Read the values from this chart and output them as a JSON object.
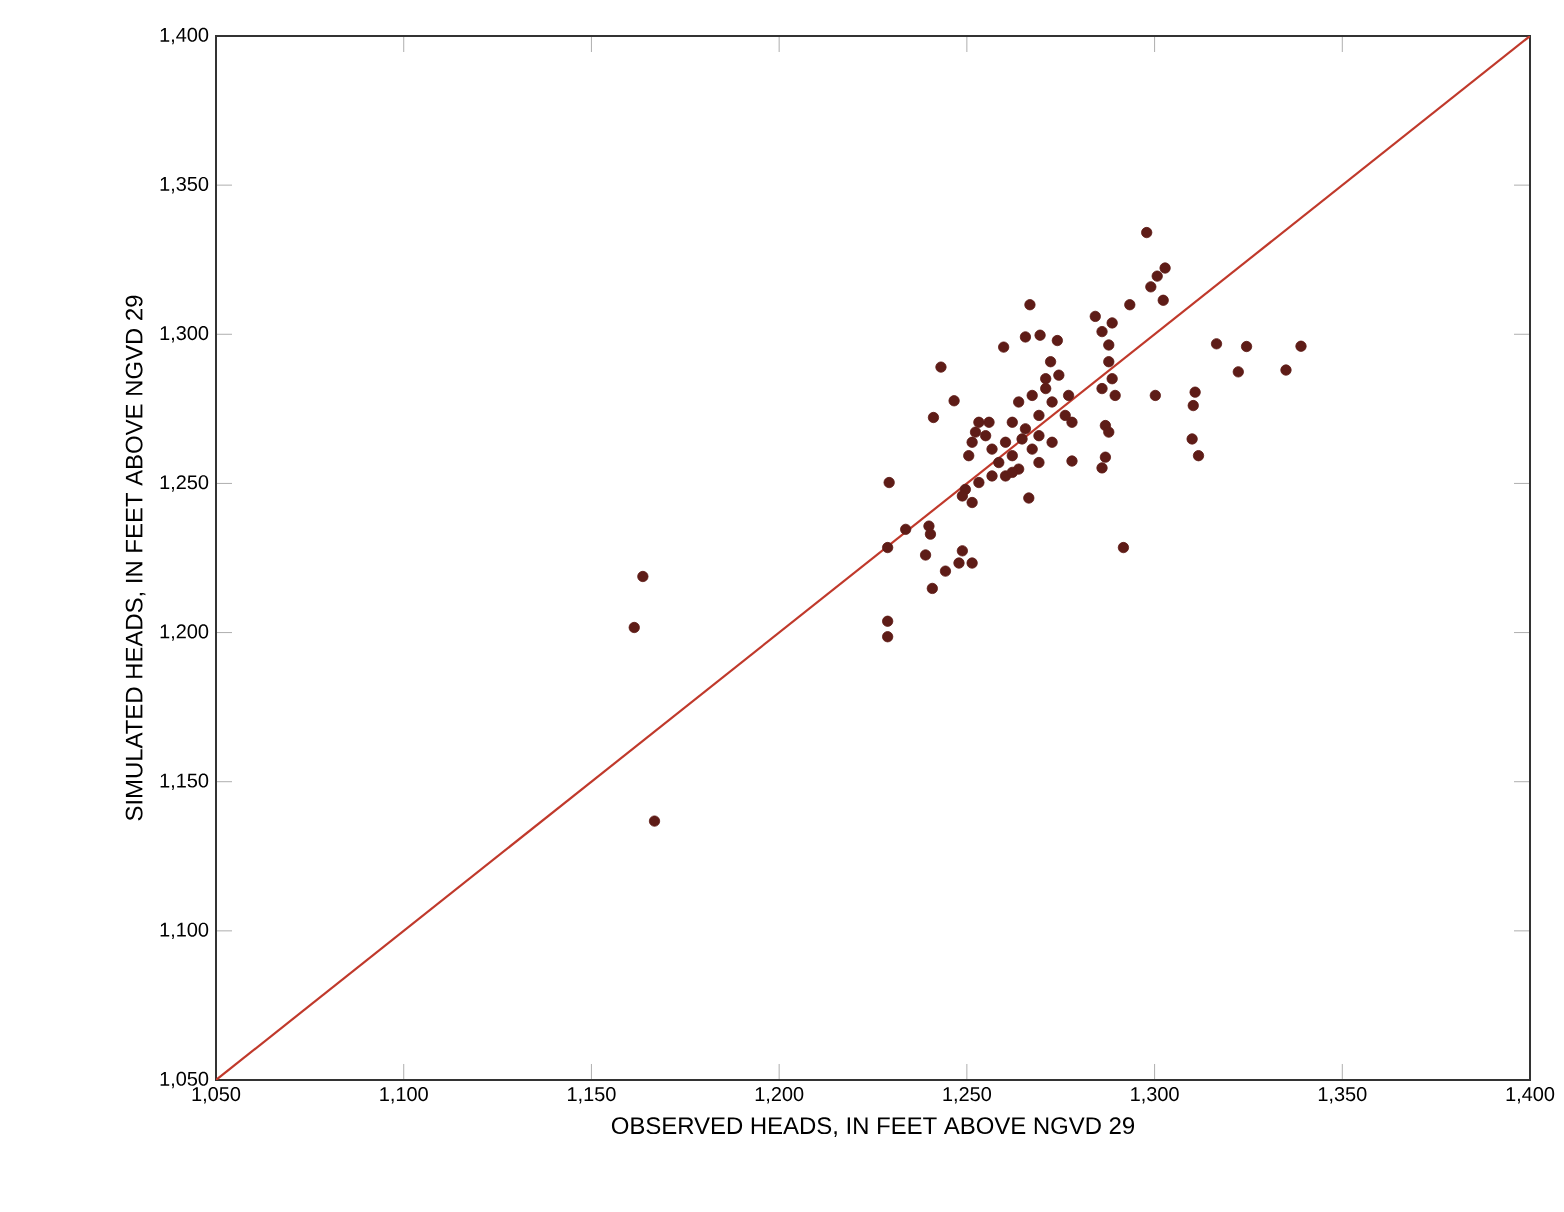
{
  "chart_data": {
    "type": "scatter",
    "xlabel": "OBSERVED HEADS, IN FEET ABOVE NGVD 29",
    "ylabel": "SIMULATED HEADS, IN FEET ABOVE NGVD 29",
    "xlim": [
      1050,
      1400
    ],
    "ylim": [
      1050,
      1400
    ],
    "xticks": [
      {
        "value": 1050,
        "label": "1,050"
      },
      {
        "value": 1100,
        "label": "1,100"
      },
      {
        "value": 1150,
        "label": "1,150"
      },
      {
        "value": 1200,
        "label": "1,200"
      },
      {
        "value": 1250,
        "label": "1,250"
      },
      {
        "value": 1300,
        "label": "1,300"
      },
      {
        "value": 1350,
        "label": "1,350"
      },
      {
        "value": 1400,
        "label": "1,400"
      }
    ],
    "yticks": [
      {
        "value": 1050,
        "label": "1,050"
      },
      {
        "value": 1100,
        "label": "1,100"
      },
      {
        "value": 1150,
        "label": "1,150"
      },
      {
        "value": 1200,
        "label": "1,200"
      },
      {
        "value": 1250,
        "label": "1,250"
      },
      {
        "value": 1300,
        "label": "1,300"
      },
      {
        "value": 1350,
        "label": "1,350"
      },
      {
        "value": 1400,
        "label": "1,400"
      }
    ],
    "grid": false,
    "series": [
      {
        "marker": "circle",
        "color": "#5e1c17",
        "x": [
          1297.9,
          1302.8,
          1300.7,
          1299.0,
          1302.3,
          1293.4,
          1266.8,
          1284.2,
          1288.7,
          1286.0,
          1265.6,
          1269.5,
          1274.1,
          1259.8,
          1287.8,
          1316.5,
          1324.5,
          1322.3,
          1243.1,
          1272.3,
          1287.8,
          1288.7,
          1286.0,
          1289.5,
          1300.2,
          1310.8,
          1310.3,
          1246.6,
          1241.1,
          1278.0,
          1286.9,
          1287.8,
          1310.0,
          1311.7,
          1278.0,
          1286.9,
          1286.0,
          1229.3,
          1266.5,
          1291.7,
          1233.7,
          1228.9,
          1239.9,
          1240.3,
          1239.0,
          1240.8,
          1244.3,
          1248.8,
          1247.9,
          1251.4,
          1253.2,
          1255.0,
          1251.4,
          1250.5,
          1256.7,
          1260.3,
          1262.1,
          1263.8,
          1267.4,
          1271.0,
          1272.7,
          1269.2,
          1265.6,
          1262.1,
          1258.5,
          1256.7,
          1253.2,
          1249.6,
          1251.4,
          1248.8,
          1260.3,
          1263.8,
          1269.2,
          1272.7,
          1276.2,
          1274.5,
          1271.0,
          1277.1,
          1255.9,
          1252.3,
          1264.7,
          1267.4,
          1269.2,
          1262.1,
          1163.7,
          1161.4,
          1166.8,
          1228.9,
          1228.9,
          1339.0,
          1335.0
        ],
        "values": [
          1334.1,
          1322.2,
          1319.5,
          1315.9,
          1311.4,
          1309.9,
          1309.9,
          1306.0,
          1303.8,
          1300.9,
          1299.1,
          1299.7,
          1297.9,
          1295.7,
          1296.4,
          1296.8,
          1295.9,
          1287.4,
          1289.0,
          1290.8,
          1290.8,
          1285.1,
          1281.8,
          1279.5,
          1279.5,
          1280.6,
          1276.1,
          1277.7,
          1272.1,
          1270.5,
          1269.4,
          1267.2,
          1264.9,
          1259.3,
          1257.5,
          1258.8,
          1255.2,
          1250.3,
          1245.1,
          1228.5,
          1234.6,
          1228.5,
          1235.7,
          1233.0,
          1226.0,
          1214.8,
          1220.6,
          1227.4,
          1223.3,
          1223.3,
          1270.5,
          1266.0,
          1263.8,
          1259.3,
          1261.5,
          1263.8,
          1270.5,
          1277.3,
          1279.5,
          1281.8,
          1277.3,
          1272.8,
          1268.3,
          1259.3,
          1257.0,
          1252.5,
          1250.3,
          1248.0,
          1243.6,
          1245.8,
          1252.5,
          1254.8,
          1257.0,
          1263.8,
          1272.8,
          1286.3,
          1285.1,
          1279.5,
          1270.5,
          1267.2,
          1264.9,
          1261.5,
          1266.0,
          1253.7,
          1218.8,
          1201.7,
          1136.8,
          1203.8,
          1198.6,
          1296.0,
          1288.0
        ]
      },
      {
        "type": "line",
        "color": "#c0392b",
        "x": [
          1050,
          1400
        ],
        "values": [
          1050,
          1400
        ],
        "line_style": "solid"
      }
    ]
  }
}
